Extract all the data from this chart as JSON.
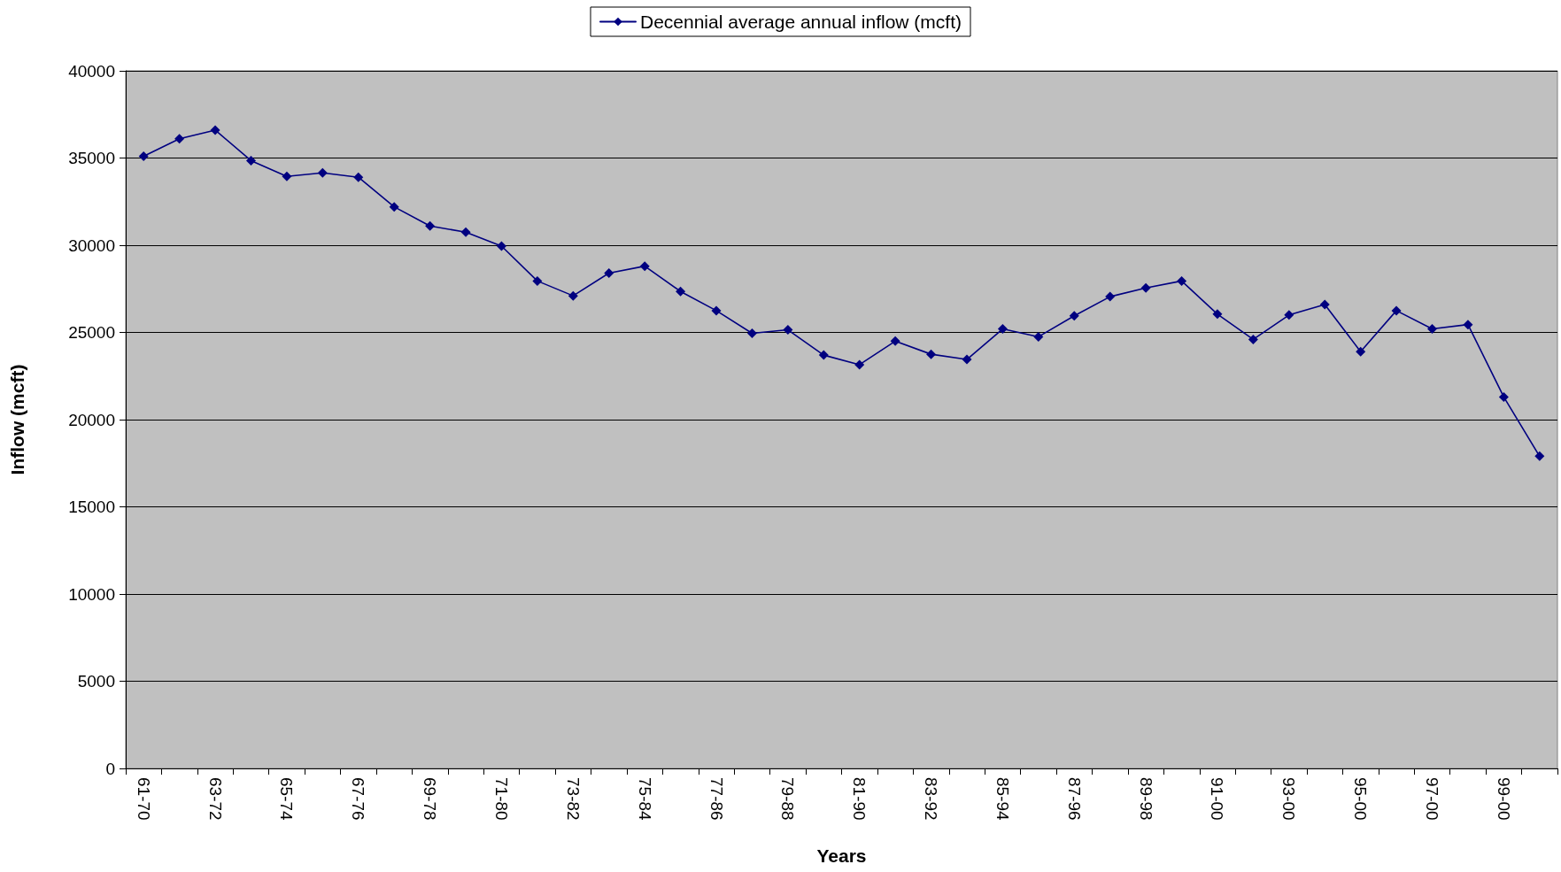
{
  "chart_data": {
    "type": "line",
    "xlabel": "Years",
    "ylabel": "Inflow (mcft)",
    "categories": [
      "61-70",
      null,
      "63-72",
      null,
      "65-74",
      null,
      "67-76",
      null,
      "69-78",
      null,
      "71-80",
      null,
      "73-82",
      null,
      "75-84",
      null,
      "77-86",
      null,
      "79-88",
      null,
      "81-90",
      null,
      "83-92",
      null,
      "85-94",
      null,
      "87-96",
      null,
      "89-98",
      null,
      "91-00",
      null,
      "93-00",
      null,
      "95-00",
      null,
      "97-00",
      null,
      "99-00",
      null
    ],
    "series": [
      {
        "name": "Decennial average annual inflow (mcft)",
        "color": "#000080",
        "values": [
          35100,
          36100,
          36600,
          34850,
          33950,
          34150,
          33900,
          32200,
          31100,
          30750,
          29950,
          27950,
          27100,
          28400,
          28800,
          27350,
          26250,
          24950,
          25150,
          23700,
          23150,
          24500,
          23750,
          23450,
          25200,
          24750,
          25950,
          27050,
          27550,
          27950,
          26050,
          24600,
          26000,
          26600,
          23900,
          26250,
          25200,
          25450,
          21300,
          17900
        ]
      }
    ],
    "ylim": [
      0,
      40000
    ],
    "yticks": [
      0,
      5000,
      10000,
      15000,
      20000,
      25000,
      30000,
      35000,
      40000
    ],
    "grid": "y",
    "legend": "top",
    "marker": "diamond",
    "line_style": "solid"
  }
}
